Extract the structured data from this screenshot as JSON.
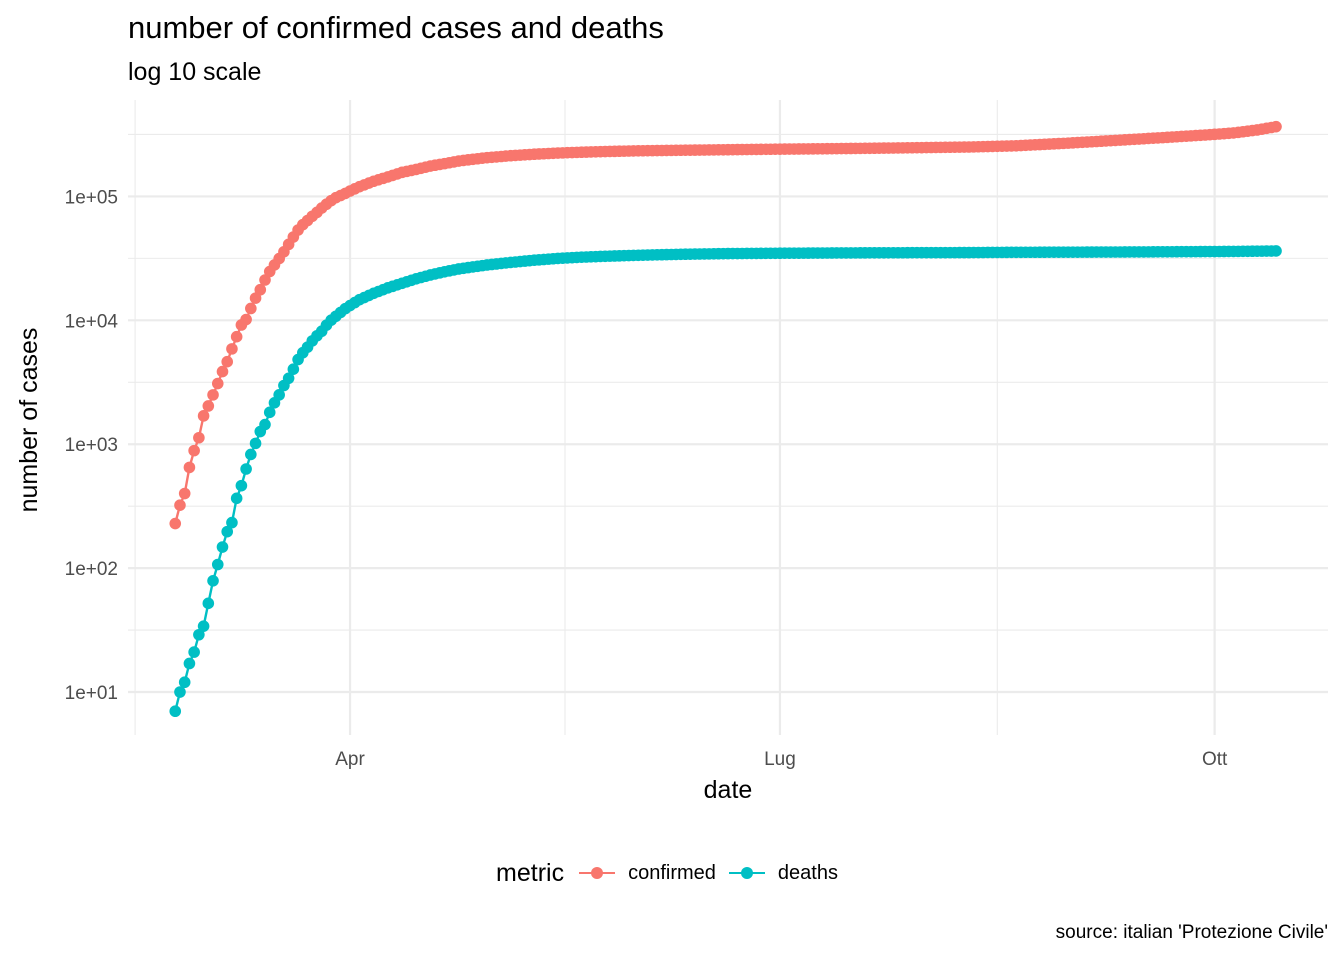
{
  "chart_data": {
    "type": "line",
    "title": "number of confirmed cases and deaths",
    "subtitle": "log 10 scale",
    "xlabel": "date",
    "ylabel": "number of cases",
    "y_scale": "log10",
    "ylim": [
      4.5,
      600000
    ],
    "y_ticks": [
      10,
      100,
      1000,
      10000,
      100000
    ],
    "y_tick_labels": [
      "1e+01",
      "1e+02",
      "1e+03",
      "1e+04",
      "1e+05"
    ],
    "xlim": [
      "2020-02-14",
      "2020-10-25"
    ],
    "x_ticks": [
      "2020-04-01",
      "2020-07-01",
      "2020-10-01"
    ],
    "x_tick_labels": [
      "Apr",
      "Lug",
      "Ott"
    ],
    "grid": true,
    "legend": {
      "title": "metric",
      "position": "bottom"
    },
    "caption": "source: italian 'Protezione Civile'",
    "series": [
      {
        "name": "confirmed",
        "color": "#F8766D",
        "points": [
          [
            "2020-02-24",
            229
          ],
          [
            "2020-02-25",
            322
          ],
          [
            "2020-02-26",
            400
          ],
          [
            "2020-02-27",
            650
          ],
          [
            "2020-02-28",
            888
          ],
          [
            "2020-02-29",
            1128
          ],
          [
            "2020-03-01",
            1694
          ],
          [
            "2020-03-02",
            2036
          ],
          [
            "2020-03-03",
            2502
          ],
          [
            "2020-03-04",
            3089
          ],
          [
            "2020-03-05",
            3858
          ],
          [
            "2020-03-06",
            4636
          ],
          [
            "2020-03-07",
            5883
          ],
          [
            "2020-03-08",
            7375
          ],
          [
            "2020-03-09",
            9172
          ],
          [
            "2020-03-10",
            10149
          ],
          [
            "2020-03-11",
            12462
          ],
          [
            "2020-03-12",
            15113
          ],
          [
            "2020-03-13",
            17660
          ],
          [
            "2020-03-14",
            21157
          ],
          [
            "2020-03-15",
            24747
          ],
          [
            "2020-03-16",
            27980
          ],
          [
            "2020-03-17",
            31506
          ],
          [
            "2020-03-18",
            35713
          ],
          [
            "2020-03-19",
            41035
          ],
          [
            "2020-03-20",
            47021
          ],
          [
            "2020-03-21",
            53578
          ],
          [
            "2020-03-22",
            59138
          ],
          [
            "2020-03-23",
            63927
          ],
          [
            "2020-03-24",
            69176
          ],
          [
            "2020-03-25",
            74386
          ],
          [
            "2020-03-26",
            80539
          ],
          [
            "2020-03-27",
            86498
          ],
          [
            "2020-03-28",
            92472
          ],
          [
            "2020-03-29",
            97689
          ],
          [
            "2020-03-30",
            101739
          ],
          [
            "2020-03-31",
            105792
          ],
          [
            "2020-04-01",
            110574
          ],
          [
            "2020-04-03",
            119827
          ],
          [
            "2020-04-06",
            132547
          ],
          [
            "2020-04-09",
            143626
          ],
          [
            "2020-04-12",
            156363
          ],
          [
            "2020-04-15",
            165155
          ],
          [
            "2020-04-18",
            175925
          ],
          [
            "2020-04-21",
            183957
          ],
          [
            "2020-04-24",
            192994
          ],
          [
            "2020-04-27",
            199414
          ],
          [
            "2020-04-30",
            205463
          ],
          [
            "2020-05-05",
            213013
          ],
          [
            "2020-05-10",
            219070
          ],
          [
            "2020-05-15",
            223885
          ],
          [
            "2020-05-20",
            227364
          ],
          [
            "2020-05-25",
            230158
          ],
          [
            "2020-05-31",
            232997
          ],
          [
            "2020-06-05",
            234531
          ],
          [
            "2020-06-10",
            235763
          ],
          [
            "2020-06-20",
            238159
          ],
          [
            "2020-07-01",
            240760
          ],
          [
            "2020-07-10",
            242363
          ],
          [
            "2020-07-20",
            244624
          ],
          [
            "2020-07-31",
            247537
          ],
          [
            "2020-08-10",
            250566
          ],
          [
            "2020-08-20",
            256118
          ],
          [
            "2020-08-31",
            269214
          ],
          [
            "2020-09-10",
            283180
          ],
          [
            "2020-09-20",
            298156
          ],
          [
            "2020-09-30",
            314861
          ],
          [
            "2020-10-05",
            325329
          ],
          [
            "2020-10-10",
            343770
          ],
          [
            "2020-10-14",
            365467
          ]
        ]
      },
      {
        "name": "deaths",
        "color": "#00BFC4",
        "points": [
          [
            "2020-02-24",
            7
          ],
          [
            "2020-02-25",
            10
          ],
          [
            "2020-02-26",
            12
          ],
          [
            "2020-02-27",
            17
          ],
          [
            "2020-02-28",
            21
          ],
          [
            "2020-02-29",
            29
          ],
          [
            "2020-03-01",
            34
          ],
          [
            "2020-03-02",
            52
          ],
          [
            "2020-03-03",
            79
          ],
          [
            "2020-03-04",
            107
          ],
          [
            "2020-03-05",
            148
          ],
          [
            "2020-03-06",
            197
          ],
          [
            "2020-03-07",
            233
          ],
          [
            "2020-03-08",
            366
          ],
          [
            "2020-03-09",
            463
          ],
          [
            "2020-03-10",
            631
          ],
          [
            "2020-03-11",
            827
          ],
          [
            "2020-03-12",
            1016
          ],
          [
            "2020-03-13",
            1266
          ],
          [
            "2020-03-14",
            1441
          ],
          [
            "2020-03-15",
            1809
          ],
          [
            "2020-03-16",
            2158
          ],
          [
            "2020-03-17",
            2503
          ],
          [
            "2020-03-18",
            2978
          ],
          [
            "2020-03-19",
            3405
          ],
          [
            "2020-03-20",
            4032
          ],
          [
            "2020-03-21",
            4825
          ],
          [
            "2020-03-22",
            5476
          ],
          [
            "2020-03-23",
            6077
          ],
          [
            "2020-03-24",
            6820
          ],
          [
            "2020-03-25",
            7503
          ],
          [
            "2020-03-26",
            8165
          ],
          [
            "2020-03-27",
            9134
          ],
          [
            "2020-03-28",
            10023
          ],
          [
            "2020-03-29",
            10779
          ],
          [
            "2020-03-30",
            11591
          ],
          [
            "2020-03-31",
            12428
          ],
          [
            "2020-04-01",
            13155
          ],
          [
            "2020-04-03",
            14681
          ],
          [
            "2020-04-06",
            16523
          ],
          [
            "2020-04-09",
            18279
          ],
          [
            "2020-04-12",
            19899
          ],
          [
            "2020-04-15",
            21645
          ],
          [
            "2020-04-18",
            23227
          ],
          [
            "2020-04-21",
            24648
          ],
          [
            "2020-04-24",
            25969
          ],
          [
            "2020-04-27",
            26977
          ],
          [
            "2020-04-30",
            27967
          ],
          [
            "2020-05-05",
            29315
          ],
          [
            "2020-05-10",
            30560
          ],
          [
            "2020-05-15",
            31610
          ],
          [
            "2020-05-20",
            32330
          ],
          [
            "2020-05-25",
            32877
          ],
          [
            "2020-05-31",
            33415
          ],
          [
            "2020-06-05",
            33774
          ],
          [
            "2020-06-10",
            34114
          ],
          [
            "2020-06-20",
            34561
          ],
          [
            "2020-07-01",
            34788
          ],
          [
            "2020-07-10",
            34926
          ],
          [
            "2020-07-20",
            35058
          ],
          [
            "2020-07-31",
            35141
          ],
          [
            "2020-08-10",
            35209
          ],
          [
            "2020-08-20",
            35412
          ],
          [
            "2020-08-31",
            35483
          ],
          [
            "2020-09-10",
            35587
          ],
          [
            "2020-09-20",
            35724
          ],
          [
            "2020-09-30",
            35894
          ],
          [
            "2020-10-05",
            35986
          ],
          [
            "2020-10-10",
            36140
          ],
          [
            "2020-10-14",
            36289
          ]
        ]
      }
    ]
  }
}
